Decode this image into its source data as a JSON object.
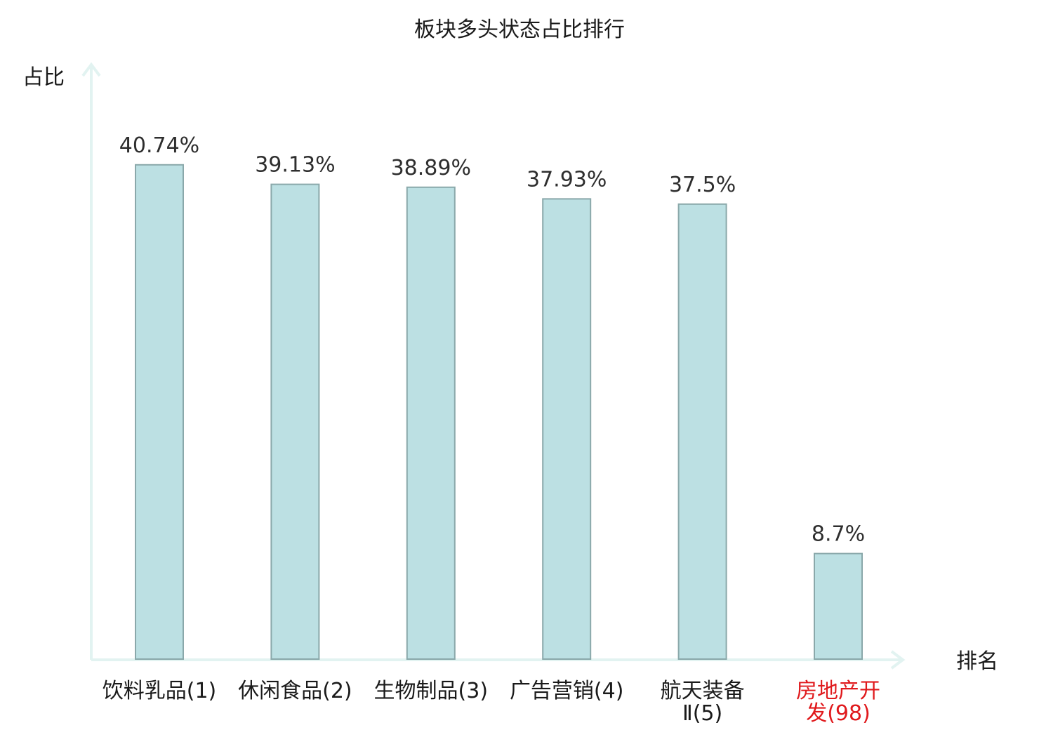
{
  "chart_data": {
    "type": "bar",
    "title": "板块多头状态占比排行",
    "ylabel": "占比",
    "xlabel": "排名",
    "ylim": [
      0,
      49
    ],
    "grid": false,
    "legend": false,
    "categories": [
      [
        "饮料乳品(1)"
      ],
      [
        "休闲食品(2)"
      ],
      [
        "生物制品(3)"
      ],
      [
        "广告营销(4)"
      ],
      [
        "航天装备",
        "Ⅱ(5)"
      ],
      [
        "房地产开",
        "发(98)"
      ]
    ],
    "values": [
      40.74,
      39.13,
      38.89,
      37.93,
      37.5,
      8.7
    ],
    "value_labels": [
      "40.74%",
      "39.13%",
      "38.89%",
      "37.93%",
      "37.5%",
      "8.7%"
    ],
    "category_colors": [
      "#1a1a1a",
      "#1a1a1a",
      "#1a1a1a",
      "#1a1a1a",
      "#1a1a1a",
      "#e0191c"
    ],
    "colors": {
      "bar_fill": "#bce0e3",
      "bar_stroke": "#8aa8aa",
      "axis": "#e2f3f1",
      "highlight_label": "#e0191c"
    }
  }
}
